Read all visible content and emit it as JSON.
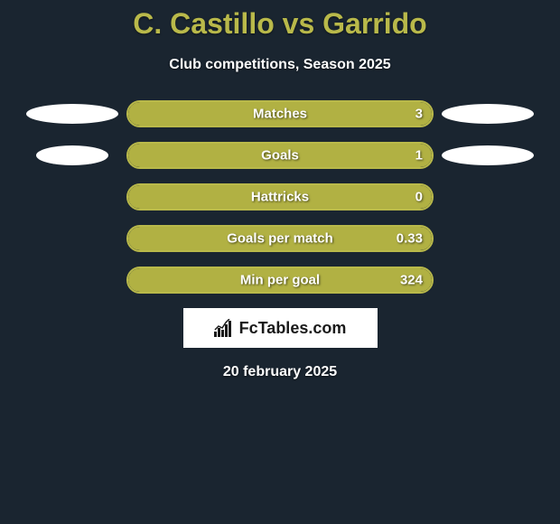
{
  "title": "C. Castillo vs Garrido",
  "subtitle": "Club competitions, Season 2025",
  "date": "20 february 2025",
  "colors": {
    "background": "#1a2530",
    "accent": "#b9b94a",
    "bar_fill": "#b1b143",
    "bar_border": "#b9b94a",
    "text": "#ffffff",
    "ellipse": "#ffffff",
    "logo_bg": "#ffffff",
    "logo_text": "#1a1a1a"
  },
  "logo_text": "FcTables.com",
  "ellipses": {
    "left": [
      {
        "w": 102,
        "h": 22
      },
      {
        "w": 80,
        "h": 22
      }
    ],
    "right": [
      {
        "w": 102,
        "h": 22
      },
      {
        "w": 102,
        "h": 22
      }
    ]
  },
  "stats": [
    {
      "label": "Matches",
      "left_value": "",
      "right_value": "3",
      "left_fill_pct": 0,
      "right_fill_pct": 100,
      "has_left_ellipse": true,
      "has_right_ellipse": true,
      "left_ellipse_idx": 0,
      "right_ellipse_idx": 0
    },
    {
      "label": "Goals",
      "left_value": "",
      "right_value": "1",
      "left_fill_pct": 0,
      "right_fill_pct": 100,
      "has_left_ellipse": true,
      "has_right_ellipse": true,
      "left_ellipse_idx": 1,
      "right_ellipse_idx": 1
    },
    {
      "label": "Hattricks",
      "left_value": "",
      "right_value": "0",
      "left_fill_pct": 0,
      "right_fill_pct": 100,
      "has_left_ellipse": false,
      "has_right_ellipse": false
    },
    {
      "label": "Goals per match",
      "left_value": "",
      "right_value": "0.33",
      "left_fill_pct": 0,
      "right_fill_pct": 100,
      "has_left_ellipse": false,
      "has_right_ellipse": false
    },
    {
      "label": "Min per goal",
      "left_value": "",
      "right_value": "324",
      "left_fill_pct": 0,
      "right_fill_pct": 100,
      "has_left_ellipse": false,
      "has_right_ellipse": false
    }
  ]
}
